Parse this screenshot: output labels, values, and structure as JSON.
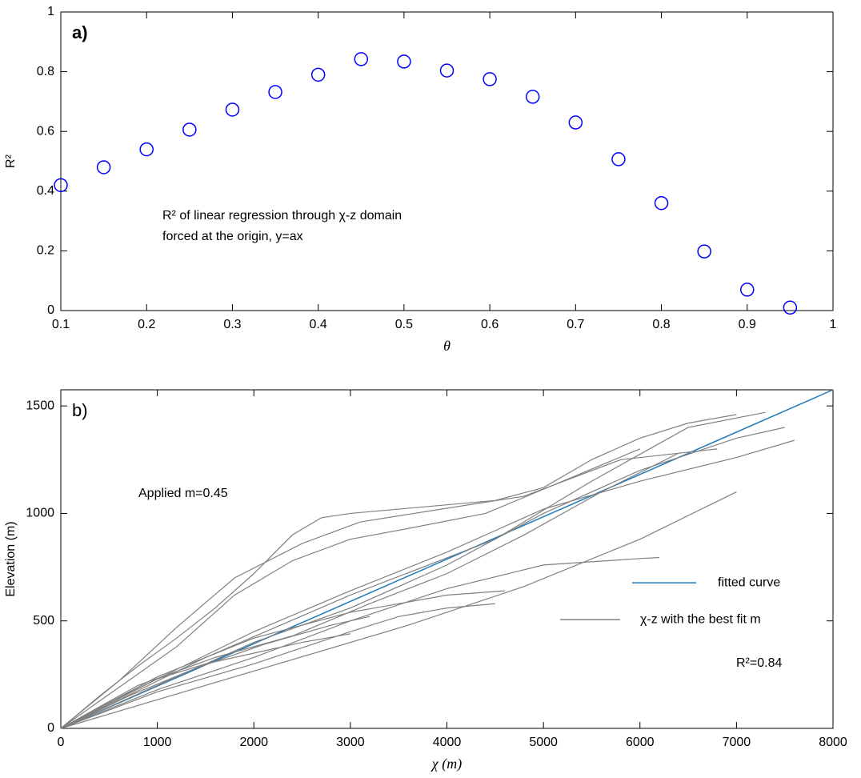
{
  "chart_data": [
    {
      "type": "scatter",
      "panel_label": "a)",
      "xlabel": "θ",
      "ylabel": "R²",
      "annotation": [
        "R² of linear regression through χ-z domain",
        "forced at the origin, y=ax"
      ],
      "xlim": [
        0.1,
        1
      ],
      "ylim": [
        0,
        1
      ],
      "xticks": [
        0.1,
        0.2,
        0.3,
        0.4,
        0.5,
        0.6,
        0.7,
        0.8,
        0.9,
        1
      ],
      "yticks": [
        0,
        0.2,
        0.4,
        0.6,
        0.8,
        1
      ],
      "series": [
        {
          "color": "#0000ff",
          "x": [
            0.1,
            0.15,
            0.2,
            0.25,
            0.3,
            0.35,
            0.4,
            0.45,
            0.5,
            0.55,
            0.6,
            0.65,
            0.7,
            0.75,
            0.8,
            0.85,
            0.9,
            0.95
          ],
          "values": [
            0.42,
            0.48,
            0.54,
            0.606,
            0.673,
            0.732,
            0.79,
            0.842,
            0.834,
            0.804,
            0.775,
            0.716,
            0.63,
            0.507,
            0.36,
            0.198,
            0.07,
            0.01
          ]
        }
      ]
    },
    {
      "type": "line",
      "panel_label": "b)",
      "xlabel": "χ (m)",
      "ylabel": "Elevation (m)",
      "annotation": [
        "Applied m=0.45",
        "R²=0.84"
      ],
      "xlim": [
        0,
        8000
      ],
      "ylim": [
        0,
        1575
      ],
      "xticks": [
        0,
        1000,
        2000,
        3000,
        4000,
        5000,
        6000,
        7000,
        8000
      ],
      "yticks": [
        0,
        500,
        1000,
        1500
      ],
      "legend": "right",
      "series": [
        {
          "name": "fitted curve",
          "color": "#1f7ab8",
          "x": [
            0,
            8000
          ],
          "values": [
            0,
            1575
          ]
        },
        {
          "name": "χ-z with the best fit m",
          "color": "#808080",
          "x": [
            0,
            400,
            800,
            1200,
            1600,
            2000,
            2400,
            2700,
            3000,
            3500,
            4000,
            4500,
            5000,
            5500,
            6000,
            6500,
            7000,
            null,
            0,
            1000,
            2000,
            3000,
            4000,
            5000,
            6000,
            7000,
            7500,
            null,
            0,
            1000,
            2000,
            3000,
            3500,
            4000,
            4500,
            null,
            0,
            800,
            1600,
            2400,
            3200,
            4000,
            4800,
            5600,
            6400,
            null,
            0,
            600,
            1200,
            1800,
            2400,
            3000,
            3600,
            4400,
            5200,
            6000,
            null,
            0,
            1000,
            2000,
            3000,
            4000,
            5000,
            6000,
            6200,
            null,
            0,
            500,
            1000,
            1500,
            2000,
            2500,
            3000,
            null,
            0,
            1000,
            2000,
            3000,
            4000,
            5000,
            6000,
            7000,
            7600,
            null,
            0,
            700,
            1400,
            2100,
            2800,
            3200,
            null,
            0,
            1500,
            3000,
            4500,
            5500,
            6500,
            7300,
            null,
            0,
            1000,
            2000,
            3000,
            4000,
            4600,
            null,
            0,
            600,
            1200,
            1800,
            2500,
            3100,
            3800,
            4800,
            5800,
            6800,
            null,
            0,
            1200,
            2400,
            3600,
            4800,
            6000,
            7000
          ],
          "values": [
            0,
            150,
            290,
            420,
            560,
            720,
            900,
            980,
            1000,
            1020,
            1040,
            1060,
            1120,
            1250,
            1350,
            1420,
            1460,
            null,
            0,
            200,
            400,
            560,
            760,
            1000,
            1200,
            1350,
            1400,
            null,
            0,
            170,
            300,
            450,
            520,
            560,
            580,
            null,
            0,
            200,
            330,
            430,
            580,
            720,
            900,
            1100,
            1280,
            null,
            0,
            190,
            380,
            620,
            780,
            880,
            930,
            1000,
            1150,
            1300,
            null,
            0,
            180,
            330,
            500,
            650,
            760,
            790,
            795,
            null,
            0,
            120,
            230,
            300,
            350,
            400,
            440,
            null,
            0,
            230,
            450,
            640,
            820,
            1020,
            1150,
            1260,
            1340,
            null,
            0,
            150,
            280,
            390,
            480,
            520,
            null,
            0,
            330,
            620,
            880,
            1150,
            1400,
            1470,
            null,
            0,
            240,
            420,
            540,
            620,
            640,
            null,
            0,
            220,
            470,
            700,
            860,
            960,
            1010,
            1080,
            1250,
            1300,
            null,
            0,
            160,
            320,
            480,
            660,
            880,
            1100
          ]
        }
      ]
    }
  ]
}
